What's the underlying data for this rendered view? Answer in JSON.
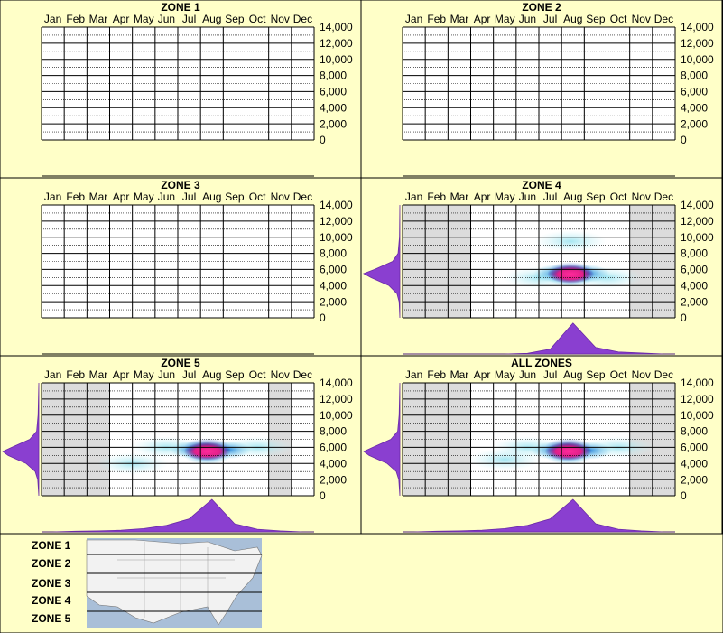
{
  "chart_data": [
    {
      "type": "heatmap",
      "title": "ZONE 1",
      "categories": [
        "Jan",
        "Feb",
        "Mar",
        "Apr",
        "May",
        "Jun",
        "Jul",
        "Aug",
        "Sep",
        "Oct",
        "Nov",
        "Dec"
      ],
      "ylim": [
        0,
        14000
      ],
      "yticks": [
        0,
        {
          "value": 2000,
          "label": "2,000"
        },
        {
          "value": 4000,
          "label": "4,000"
        },
        {
          "value": 6000,
          "label": "6,000"
        },
        {
          "value": 8000,
          "label": "8,000"
        },
        {
          "value": 10000,
          "label": "10,000"
        },
        {
          "value": 12000,
          "label": "12,000"
        },
        {
          "value": 14000,
          "label": "14,000"
        }
      ],
      "minor_yticks": [
        1000,
        3000,
        5000,
        7000,
        9000,
        11000,
        13000
      ],
      "shaded": [],
      "heat": []
    },
    {
      "type": "heatmap",
      "title": "ZONE 2",
      "categories": [
        "Jan",
        "Feb",
        "Mar",
        "Apr",
        "May",
        "Jun",
        "Jul",
        "Aug",
        "Sep",
        "Oct",
        "Nov",
        "Dec"
      ],
      "ylim": [
        0,
        14000
      ],
      "yticks": [
        0,
        {
          "value": 2000,
          "label": "2,000"
        },
        {
          "value": 4000,
          "label": "4,000"
        },
        {
          "value": 6000,
          "label": "6,000"
        },
        {
          "value": 8000,
          "label": "8,000"
        },
        {
          "value": 10000,
          "label": "10,000"
        },
        {
          "value": 12000,
          "label": "12,000"
        },
        {
          "value": 14000,
          "label": "14,000"
        }
      ],
      "minor_yticks": [
        1000,
        3000,
        5000,
        7000,
        9000,
        11000,
        13000
      ],
      "shaded": [],
      "heat": []
    },
    {
      "type": "heatmap",
      "title": "ZONE 3",
      "categories": [
        "Jan",
        "Feb",
        "Mar",
        "Apr",
        "May",
        "Jun",
        "Jul",
        "Aug",
        "Sep",
        "Oct",
        "Nov",
        "Dec"
      ],
      "ylim": [
        0,
        14000
      ],
      "yticks": [
        0,
        {
          "value": 2000,
          "label": "2,000"
        },
        {
          "value": 4000,
          "label": "4,000"
        },
        {
          "value": 6000,
          "label": "6,000"
        },
        {
          "value": 8000,
          "label": "8,000"
        },
        {
          "value": 10000,
          "label": "10,000"
        },
        {
          "value": 12000,
          "label": "12,000"
        },
        {
          "value": 14000,
          "label": "14,000"
        }
      ],
      "minor_yticks": [
        1000,
        3000,
        5000,
        7000,
        9000,
        11000,
        13000
      ],
      "shaded": [],
      "heat": []
    },
    {
      "type": "heatmap",
      "title": "ZONE 4",
      "categories": [
        "Jan",
        "Feb",
        "Mar",
        "Apr",
        "May",
        "Jun",
        "Jul",
        "Aug",
        "Sep",
        "Oct",
        "Nov",
        "Dec"
      ],
      "ylim": [
        0,
        14000
      ],
      "yticks": [
        0,
        {
          "value": 2000,
          "label": "2,000"
        },
        {
          "value": 4000,
          "label": "4,000"
        },
        {
          "value": 6000,
          "label": "6,000"
        },
        {
          "value": 8000,
          "label": "8,000"
        },
        {
          "value": 10000,
          "label": "10,000"
        },
        {
          "value": 12000,
          "label": "12,000"
        },
        {
          "value": 14000,
          "label": "14,000"
        }
      ],
      "minor_yticks": [
        1000,
        3000,
        5000,
        7000,
        9000,
        11000,
        13000
      ],
      "shaded": [
        0,
        1,
        2,
        10,
        11
      ],
      "heat": [
        {
          "x": 6.0,
          "y": 5000,
          "value": 0.15
        },
        {
          "x": 9.0,
          "y": 5000,
          "value": 0.15
        },
        {
          "x": 7.4,
          "y": 9500,
          "value": 0.1
        },
        {
          "x": 6.8,
          "y": 5500,
          "value": 0.45
        },
        {
          "x": 8.1,
          "y": 5500,
          "value": 0.45
        },
        {
          "x": 7.4,
          "y": 5000,
          "value": 0.6
        },
        {
          "x": 7.4,
          "y": 5800,
          "value": 0.7
        },
        {
          "x": 7.4,
          "y": 5400,
          "value": 1.0
        }
      ],
      "month_profile": {
        "x": [
          0.5,
          1.5,
          2.5,
          3.5,
          4.5,
          5.5,
          6.5,
          7.5,
          8.5,
          9.5,
          10.5,
          11.5
        ],
        "values": [
          0,
          0,
          0,
          0,
          0,
          0.02,
          0.15,
          0.95,
          0.2,
          0.06,
          0.03,
          0
        ]
      },
      "elevation_profile": {
        "y": [
          0,
          2000,
          3000,
          4000,
          5000,
          5500,
          6000,
          7000,
          8000,
          10000,
          14000
        ],
        "values": [
          0,
          0.02,
          0.08,
          0.3,
          0.8,
          1,
          0.7,
          0.2,
          0.05,
          0.01,
          0
        ]
      }
    },
    {
      "type": "heatmap",
      "title": "ZONE 5",
      "categories": [
        "Jan",
        "Feb",
        "Mar",
        "Apr",
        "May",
        "Jun",
        "Jul",
        "Aug",
        "Sep",
        "Oct",
        "Nov",
        "Dec"
      ],
      "ylim": [
        0,
        14000
      ],
      "yticks": [
        0,
        {
          "value": 2000,
          "label": "2,000"
        },
        {
          "value": 4000,
          "label": "4,000"
        },
        {
          "value": 6000,
          "label": "6,000"
        },
        {
          "value": 8000,
          "label": "8,000"
        },
        {
          "value": 10000,
          "label": "10,000"
        },
        {
          "value": 12000,
          "label": "12,000"
        },
        {
          "value": 14000,
          "label": "14,000"
        }
      ],
      "minor_yticks": [
        1000,
        3000,
        5000,
        7000,
        9000,
        11000,
        13000
      ],
      "shaded": [
        0,
        1,
        2,
        10
      ],
      "heat": [
        {
          "x": 5.5,
          "y": 6000,
          "value": 0.15
        },
        {
          "x": 9.5,
          "y": 6000,
          "value": 0.15
        },
        {
          "x": 4.0,
          "y": 4000,
          "value": 0.1
        },
        {
          "x": 6.7,
          "y": 5700,
          "value": 0.45
        },
        {
          "x": 8.2,
          "y": 5700,
          "value": 0.45
        },
        {
          "x": 7.3,
          "y": 5000,
          "value": 0.6
        },
        {
          "x": 7.3,
          "y": 6000,
          "value": 0.7
        },
        {
          "x": 7.3,
          "y": 5500,
          "value": 1.0
        }
      ],
      "month_profile": {
        "x": [
          0.5,
          1.5,
          2.5,
          3.5,
          4.5,
          5.5,
          6.5,
          7.5,
          8.5,
          9.5,
          10.5,
          11.5
        ],
        "values": [
          0,
          0.02,
          0.03,
          0.05,
          0.1,
          0.2,
          0.4,
          1,
          0.25,
          0.08,
          0.03,
          0
        ]
      },
      "elevation_profile": {
        "y": [
          0,
          2000,
          3000,
          4000,
          5000,
          5500,
          6000,
          7000,
          8000,
          10000,
          14000
        ],
        "values": [
          0,
          0.03,
          0.1,
          0.35,
          0.85,
          1,
          0.75,
          0.25,
          0.06,
          0.02,
          0
        ]
      }
    },
    {
      "type": "heatmap",
      "title": "ALL ZONES",
      "categories": [
        "Jan",
        "Feb",
        "Mar",
        "Apr",
        "May",
        "Jun",
        "Jul",
        "Aug",
        "Sep",
        "Oct",
        "Nov",
        "Dec"
      ],
      "ylim": [
        0,
        14000
      ],
      "yticks": [
        0,
        {
          "value": 2000,
          "label": "2,000"
        },
        {
          "value": 4000,
          "label": "4,000"
        },
        {
          "value": 6000,
          "label": "6,000"
        },
        {
          "value": 8000,
          "label": "8,000"
        },
        {
          "value": 10000,
          "label": "10,000"
        },
        {
          "value": 12000,
          "label": "12,000"
        },
        {
          "value": 14000,
          "label": "14,000"
        }
      ],
      "minor_yticks": [
        1000,
        3000,
        5000,
        7000,
        9000,
        11000,
        13000
      ],
      "shaded": [
        0,
        1,
        2,
        10,
        11
      ],
      "heat": [
        {
          "x": 5.5,
          "y": 6000,
          "value": 0.15
        },
        {
          "x": 9.5,
          "y": 6000,
          "value": 0.15
        },
        {
          "x": 4.5,
          "y": 4500,
          "value": 0.1
        },
        {
          "x": 6.7,
          "y": 5600,
          "value": 0.45
        },
        {
          "x": 8.2,
          "y": 5600,
          "value": 0.45
        },
        {
          "x": 7.3,
          "y": 5000,
          "value": 0.6
        },
        {
          "x": 7.3,
          "y": 6000,
          "value": 0.7
        },
        {
          "x": 7.3,
          "y": 5500,
          "value": 1.0
        }
      ],
      "month_profile": {
        "x": [
          0.5,
          1.5,
          2.5,
          3.5,
          4.5,
          5.5,
          6.5,
          7.5,
          8.5,
          9.5,
          10.5,
          11.5
        ],
        "values": [
          0,
          0.02,
          0.03,
          0.05,
          0.1,
          0.2,
          0.4,
          1,
          0.25,
          0.08,
          0.03,
          0
        ]
      },
      "elevation_profile": {
        "y": [
          0,
          2000,
          3000,
          4000,
          5000,
          5500,
          6000,
          7000,
          8000,
          10000,
          14000
        ],
        "values": [
          0,
          0.03,
          0.1,
          0.35,
          0.85,
          1,
          0.75,
          0.25,
          0.06,
          0.02,
          0
        ]
      }
    }
  ],
  "legend": {
    "labels": [
      "ZONE 1",
      "ZONE 2",
      "ZONE 3",
      "ZONE 4",
      "ZONE 5"
    ]
  }
}
